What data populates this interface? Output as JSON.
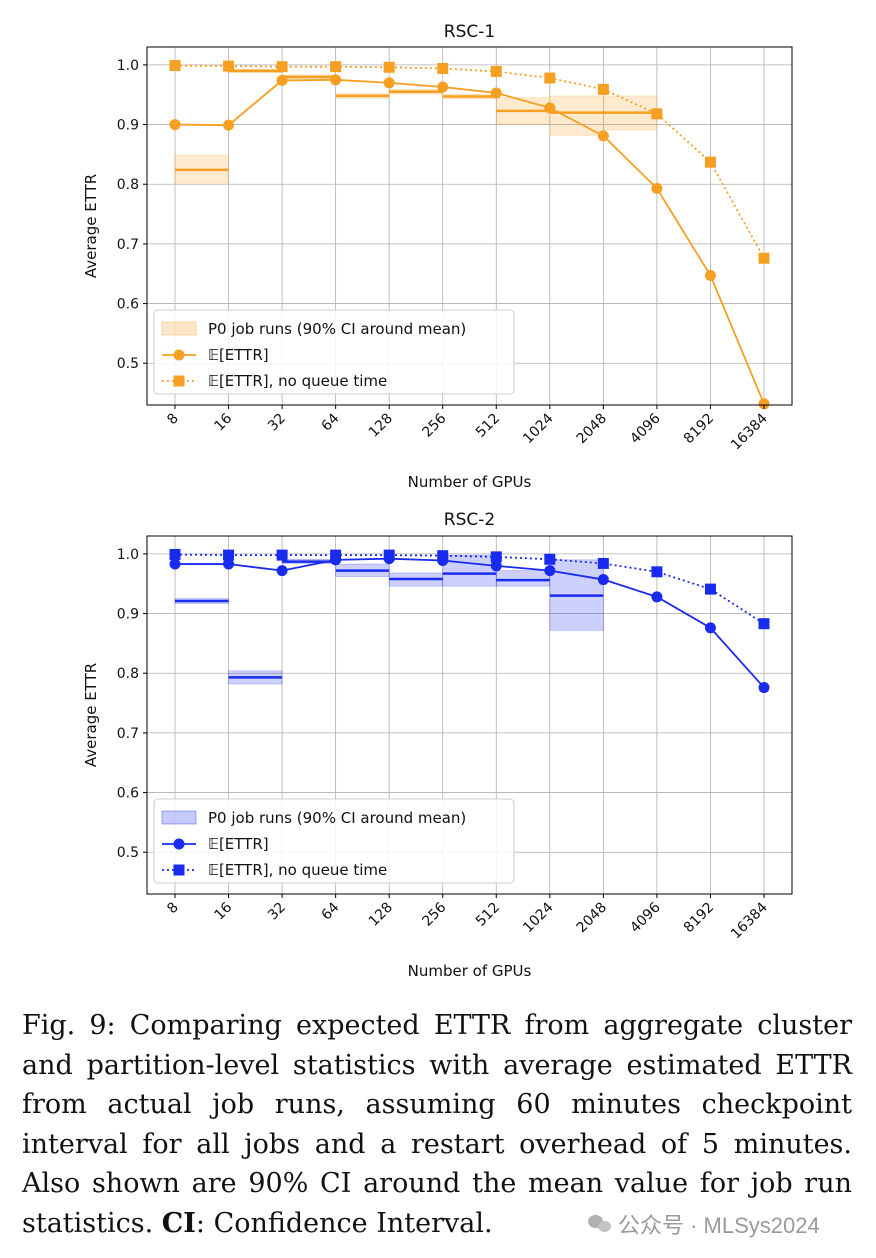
{
  "chart_data": [
    {
      "type": "line",
      "title": "RSC-1",
      "xlabel": "Number of GPUs",
      "ylabel": "Average ETTR",
      "categories": [
        "8",
        "16",
        "32",
        "64",
        "128",
        "256",
        "512",
        "1024",
        "2048",
        "4096",
        "8192",
        "16384"
      ],
      "ylim": [
        0.43,
        1.03
      ],
      "yticks": [
        "0.5",
        "0.6",
        "0.7",
        "0.8",
        "0.9",
        "1.0"
      ],
      "color": "#f5a023",
      "grid": true,
      "legend_position": "lower-left",
      "series": [
        {
          "name": "𝔼[ETTR]",
          "marker": "circle",
          "linestyle": "solid",
          "values": [
            0.9,
            0.899,
            0.974,
            0.975,
            0.97,
            0.963,
            0.953,
            0.928,
            0.881,
            0.793,
            0.647,
            0.432
          ]
        },
        {
          "name": "𝔼[ETTR], no queue time",
          "marker": "square",
          "linestyle": "dotted",
          "values": [
            0.999,
            0.998,
            0.997,
            0.997,
            0.996,
            0.994,
            0.989,
            0.978,
            0.959,
            0.918,
            0.837,
            0.676
          ]
        }
      ],
      "ci_series": {
        "name": "P0 job runs (90% CI around mean)",
        "bins": [
          {
            "from": "8",
            "to": "16",
            "mean": 0.824,
            "low": 0.802,
            "high": 0.849
          },
          {
            "from": "16",
            "to": "32",
            "mean": 0.99,
            "low": 0.987,
            "high": 0.993
          },
          {
            "from": "32",
            "to": "64",
            "mean": 0.98,
            "low": 0.977,
            "high": 0.983
          },
          {
            "from": "64",
            "to": "128",
            "mean": 0.948,
            "low": 0.944,
            "high": 0.952
          },
          {
            "from": "128",
            "to": "256",
            "mean": 0.955,
            "low": 0.951,
            "high": 0.959
          },
          {
            "from": "256",
            "to": "512",
            "mean": 0.947,
            "low": 0.943,
            "high": 0.951
          },
          {
            "from": "512",
            "to": "1024",
            "mean": 0.923,
            "low": 0.9,
            "high": 0.945
          },
          {
            "from": "1024",
            "to": "2048",
            "mean": 0.92,
            "low": 0.882,
            "high": 0.948
          },
          {
            "from": "2048",
            "to": "4096",
            "mean": 0.92,
            "low": 0.891,
            "high": 0.948
          }
        ]
      }
    },
    {
      "type": "line",
      "title": "RSC-2",
      "xlabel": "Number of GPUs",
      "ylabel": "Average ETTR",
      "categories": [
        "8",
        "16",
        "32",
        "64",
        "128",
        "256",
        "512",
        "1024",
        "2048",
        "4096",
        "8192",
        "16384"
      ],
      "ylim": [
        0.43,
        1.03
      ],
      "yticks": [
        "0.5",
        "0.6",
        "0.7",
        "0.8",
        "0.9",
        "1.0"
      ],
      "color": "#1a2bf0",
      "grid": true,
      "legend_position": "lower-left",
      "series": [
        {
          "name": "𝔼[ETTR]",
          "marker": "circle",
          "linestyle": "solid",
          "values": [
            0.983,
            0.983,
            0.972,
            0.99,
            0.992,
            0.989,
            0.98,
            0.972,
            0.957,
            0.928,
            0.876,
            0.776
          ]
        },
        {
          "name": "𝔼[ETTR], no queue time",
          "marker": "square",
          "linestyle": "dotted",
          "values": [
            0.999,
            0.998,
            0.998,
            0.998,
            0.998,
            0.997,
            0.995,
            0.991,
            0.984,
            0.97,
            0.941,
            0.883
          ]
        }
      ],
      "ci_series": {
        "name": "P0 job runs (90% CI around mean)",
        "bins": [
          {
            "from": "8",
            "to": "16",
            "mean": 0.921,
            "low": 0.917,
            "high": 0.925
          },
          {
            "from": "16",
            "to": "32",
            "mean": 0.793,
            "low": 0.782,
            "high": 0.804
          },
          {
            "from": "32",
            "to": "64",
            "mean": 0.987,
            "low": 0.984,
            "high": 0.991
          },
          {
            "from": "64",
            "to": "128",
            "mean": 0.972,
            "low": 0.962,
            "high": 0.983
          },
          {
            "from": "128",
            "to": "256",
            "mean": 0.958,
            "low": 0.946,
            "high": 0.968
          },
          {
            "from": "256",
            "to": "512",
            "mean": 0.967,
            "low": 0.946,
            "high": 0.998
          },
          {
            "from": "512",
            "to": "1024",
            "mean": 0.956,
            "low": 0.946,
            "high": 0.972
          },
          {
            "from": "1024",
            "to": "2048",
            "mean": 0.93,
            "low": 0.872,
            "high": 0.99
          }
        ]
      }
    }
  ],
  "caption": {
    "text": "Fig. 9: Comparing expected ETTR from aggregate cluster and partition-level statistics with average estimated ETTR from actual job runs, assuming 60 minutes checkpoint interval for all jobs and a restart overhead of 5 minutes. Also shown are 90% CI around the mean value for job run statistics. ",
    "bold_term": "CI",
    "tail": ": Confidence Interval."
  },
  "watermark": {
    "text": "公众号 · MLSys2024",
    "icon": "wechat-logo-icon"
  }
}
